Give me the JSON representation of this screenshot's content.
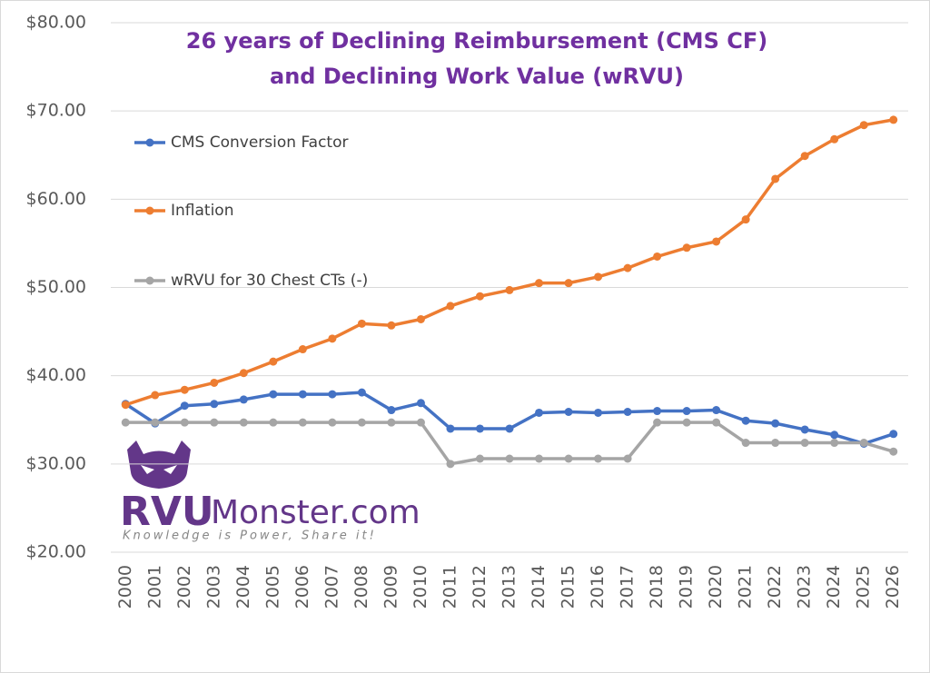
{
  "chart_data": {
    "type": "line",
    "title": [
      "26 years of Declining Reimbursement (CMS CF)",
      "and Declining Work Value (wRVU)"
    ],
    "categories": [
      "2000",
      "2001",
      "2002",
      "2003",
      "2004",
      "2005",
      "2006",
      "2007",
      "2008",
      "2009",
      "2010",
      "2011",
      "2012",
      "2013",
      "2014",
      "2015",
      "2016",
      "2017",
      "2018",
      "2019",
      "2020",
      "2021",
      "2022",
      "2023",
      "2024",
      "2025",
      "2026"
    ],
    "series": [
      {
        "name": "CMS Conversion Factor",
        "color": "#4472c4",
        "values": [
          36.8,
          34.6,
          36.6,
          36.8,
          37.3,
          37.9,
          37.9,
          37.9,
          38.1,
          36.1,
          36.9,
          34.0,
          34.0,
          34.0,
          35.8,
          35.9,
          35.8,
          35.9,
          36.0,
          36.0,
          36.1,
          34.9,
          34.6,
          33.9,
          33.3,
          32.3,
          33.4
        ]
      },
      {
        "name": "Inflation",
        "color": "#ed7d31",
        "values": [
          36.7,
          37.8,
          38.4,
          39.2,
          40.3,
          41.6,
          43.0,
          44.2,
          45.9,
          45.7,
          46.4,
          47.9,
          49.0,
          49.7,
          50.5,
          50.5,
          51.2,
          52.2,
          53.5,
          54.5,
          55.2,
          57.7,
          62.3,
          64.9,
          66.8,
          68.4,
          69.0
        ]
      },
      {
        "name": "wRVU for 30 Chest CTs (-)",
        "color": "#a5a5a5",
        "values": [
          34.7,
          34.7,
          34.7,
          34.7,
          34.7,
          34.7,
          34.7,
          34.7,
          34.7,
          34.7,
          34.7,
          30.0,
          30.6,
          30.6,
          30.6,
          30.6,
          30.6,
          30.6,
          34.7,
          34.7,
          34.7,
          32.4,
          32.4,
          32.4,
          32.4,
          32.4,
          31.4
        ]
      }
    ],
    "ylim": [
      20,
      80
    ],
    "yticks": [
      {
        "value": 20,
        "label": "$20.00"
      },
      {
        "value": 30,
        "label": "$30.00"
      },
      {
        "value": 40,
        "label": "$40.00"
      },
      {
        "value": 50,
        "label": "$50.00"
      },
      {
        "value": 60,
        "label": "$60.00"
      },
      {
        "value": 70,
        "label": "$70.00"
      },
      {
        "value": 80,
        "label": "$80.00"
      }
    ],
    "grid": true,
    "legend": "left",
    "watermark": {
      "brand_bold": "RVU",
      "brand": "Monster.com",
      "tagline": "Knowledge is Power, Share it!"
    }
  }
}
